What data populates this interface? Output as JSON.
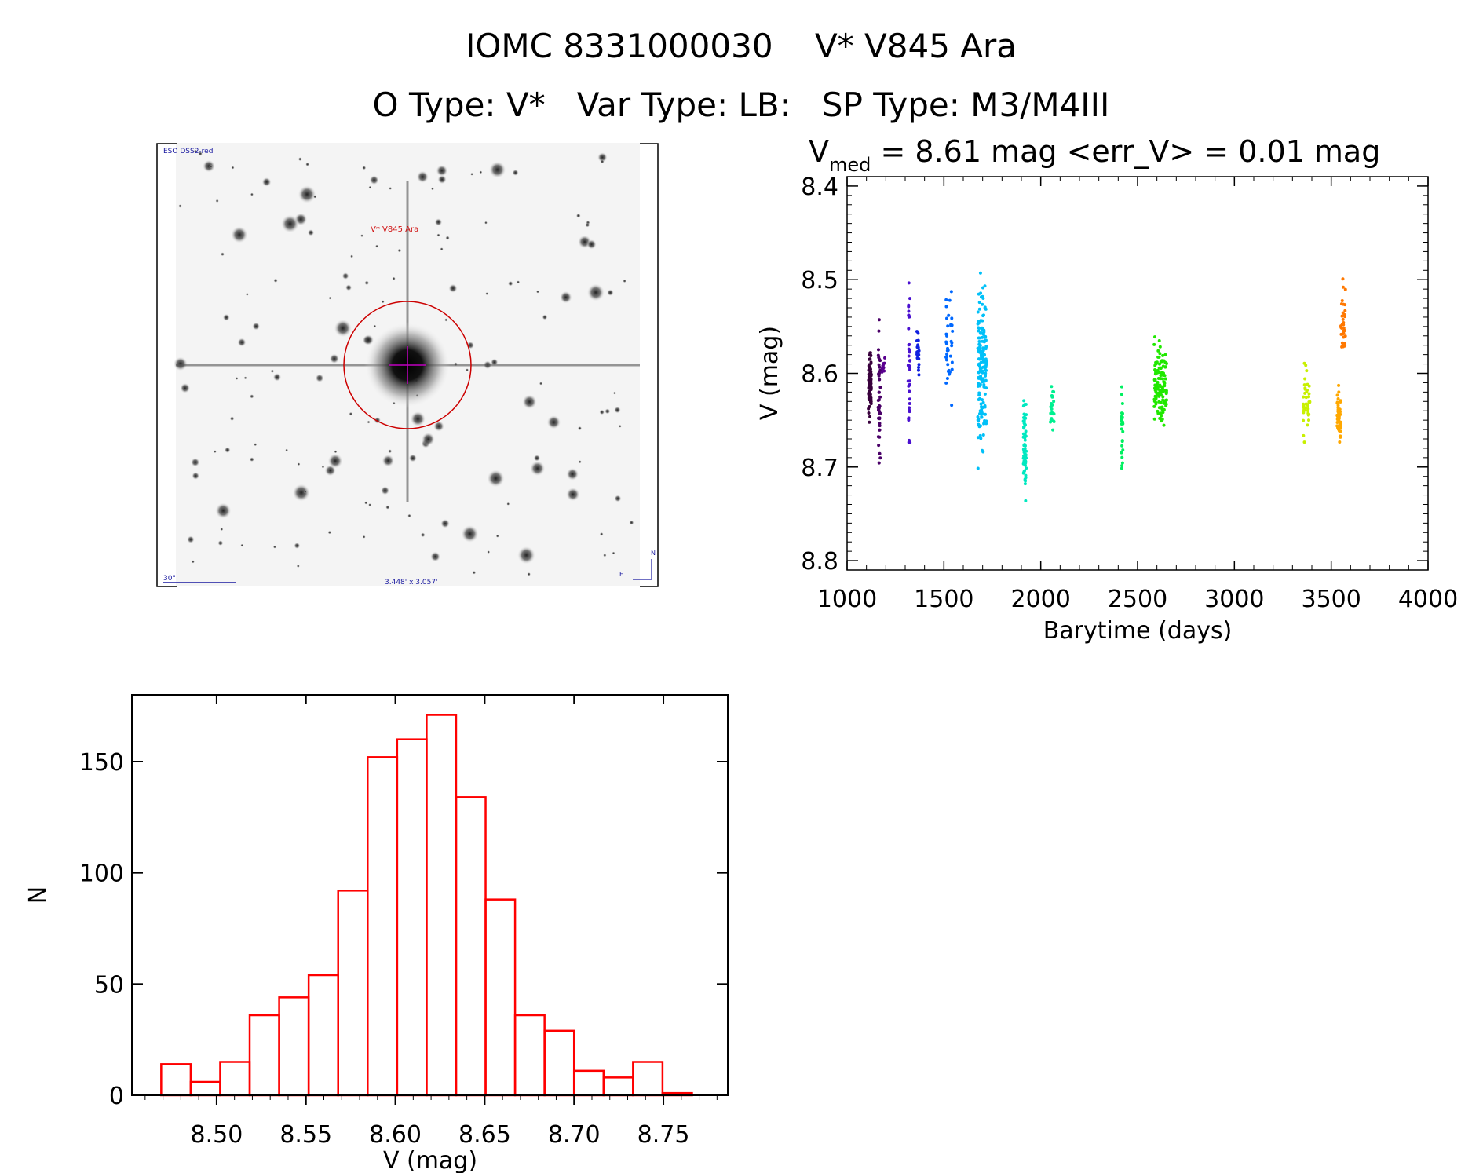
{
  "header": {
    "title_line1": "IOMC 8331000030    V* V845 Ara",
    "title_line2": "O Type: V*   Var Type: LB:   SP Type: M3/M4III"
  },
  "image_panel": {
    "survey_label": "ESO DSS2-red",
    "target_label": "V* V845 Ara",
    "scale_label": "30\"",
    "fov_label": "3.448' x 3.057'",
    "north_label": "N",
    "east_label": "E"
  },
  "chart_data": [
    {
      "type": "scatter",
      "title_prefix": "V",
      "title_sub": "med",
      "title_rest": " = 8.61 mag <err_V> = 0.01 mag",
      "xlabel": "Barytime (days)",
      "ylabel": "V (mag)",
      "xlim": [
        1000,
        4000
      ],
      "ylim": [
        8.81,
        8.39
      ],
      "xticks": [
        "1000",
        "1500",
        "2000",
        "2500",
        "3000",
        "3500",
        "4000"
      ],
      "yticks": [
        "8.4",
        "8.5",
        "8.6",
        "8.7",
        "8.8"
      ],
      "clusters": [
        {
          "t": [
            1110,
            1125
          ],
          "v": [
            8.56,
            8.66
          ],
          "n": 90,
          "color": "#38003c"
        },
        {
          "t": [
            1160,
            1172
          ],
          "v": [
            8.52,
            8.74
          ],
          "n": 45,
          "color": "#4a0068"
        },
        {
          "t": [
            1180,
            1195
          ],
          "v": [
            8.58,
            8.6
          ],
          "n": 10,
          "color": "#5a0090"
        },
        {
          "t": [
            1315,
            1325
          ],
          "v": [
            8.47,
            8.7
          ],
          "n": 40,
          "color": "#4a10d0"
        },
        {
          "t": [
            1360,
            1372
          ],
          "v": [
            8.54,
            8.62
          ],
          "n": 22,
          "color": "#1020e0"
        },
        {
          "t": [
            1510,
            1545
          ],
          "v": [
            8.49,
            8.65
          ],
          "n": 40,
          "color": "#0068ff"
        },
        {
          "t": [
            1675,
            1720
          ],
          "v": [
            8.47,
            8.71
          ],
          "n": 160,
          "color": "#00c0f8"
        },
        {
          "t": [
            1910,
            1925
          ],
          "v": [
            8.6,
            8.75
          ],
          "n": 60,
          "color": "#00e8c0"
        },
        {
          "t": [
            2050,
            2070
          ],
          "v": [
            8.59,
            8.68
          ],
          "n": 25,
          "color": "#00f090"
        },
        {
          "t": [
            2415,
            2425
          ],
          "v": [
            8.6,
            8.73
          ],
          "n": 25,
          "color": "#00f060"
        },
        {
          "t": [
            2585,
            2650
          ],
          "v": [
            8.55,
            8.67
          ],
          "n": 120,
          "color": "#20e800"
        },
        {
          "t": [
            3355,
            3390
          ],
          "v": [
            8.57,
            8.68
          ],
          "n": 40,
          "color": "#c8f000"
        },
        {
          "t": [
            3530,
            3550
          ],
          "v": [
            8.6,
            8.69
          ],
          "n": 50,
          "color": "#ffa800"
        },
        {
          "t": [
            3550,
            3575
          ],
          "v": [
            8.49,
            8.6
          ],
          "n": 35,
          "color": "#ff7800"
        }
      ]
    },
    {
      "type": "bar",
      "subtype": "histogram",
      "xlabel": "V (mag)",
      "ylabel": "N",
      "xlim": [
        8.4526,
        8.786
      ],
      "ylim": [
        0,
        180
      ],
      "xticks": [
        "8.50",
        "8.55",
        "8.60",
        "8.65",
        "8.70",
        "8.75"
      ],
      "yticks": [
        "0",
        "50",
        "100",
        "150"
      ],
      "bin_start": 8.469,
      "bin_width": 0.0165,
      "values": [
        14,
        6,
        15,
        36,
        44,
        54,
        92,
        152,
        160,
        171,
        134,
        88,
        36,
        29,
        11,
        8,
        15,
        1
      ],
      "color": "#ff0000"
    }
  ]
}
